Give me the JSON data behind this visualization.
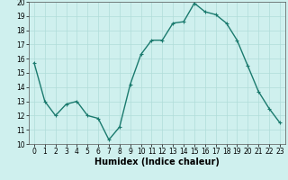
{
  "x": [
    0,
    1,
    2,
    3,
    4,
    5,
    6,
    7,
    8,
    9,
    10,
    11,
    12,
    13,
    14,
    15,
    16,
    17,
    18,
    19,
    20,
    21,
    22,
    23
  ],
  "y": [
    15.7,
    13.0,
    12.0,
    12.8,
    13.0,
    12.0,
    11.8,
    10.3,
    11.2,
    14.2,
    16.3,
    17.3,
    17.3,
    18.5,
    18.6,
    19.9,
    19.3,
    19.1,
    18.5,
    17.3,
    15.5,
    13.7,
    12.5,
    11.5
  ],
  "line_color": "#1a7a6e",
  "marker": "+",
  "marker_size": 3,
  "linewidth": 1.0,
  "xlabel": "Humidex (Indice chaleur)",
  "ylim": [
    10,
    20
  ],
  "xlim_min": -0.5,
  "xlim_max": 23.5,
  "yticks": [
    10,
    11,
    12,
    13,
    14,
    15,
    16,
    17,
    18,
    19,
    20
  ],
  "xticks": [
    0,
    1,
    2,
    3,
    4,
    5,
    6,
    7,
    8,
    9,
    10,
    11,
    12,
    13,
    14,
    15,
    16,
    17,
    18,
    19,
    20,
    21,
    22,
    23
  ],
  "bg_color": "#cff0ee",
  "grid_color": "#b0ddd9",
  "tick_label_fontsize": 5.5,
  "xlabel_fontsize": 7.0
}
